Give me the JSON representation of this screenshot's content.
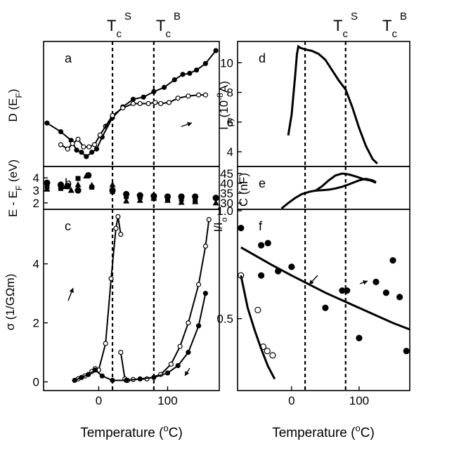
{
  "header": {
    "tc_s": {
      "main": "T",
      "sub": "c",
      "sup": "S"
    },
    "tc_b": {
      "main": "T",
      "sub": "c",
      "sup": "B"
    }
  },
  "x_axis_label": {
    "pre": "Temperature (",
    "sup": "o",
    "post": "C)"
  },
  "chart_data": [
    {
      "id": "a",
      "panel_label": "a",
      "type": "line",
      "ylabel": "D (E_F)",
      "xlim": [
        -80,
        175
      ],
      "ylim": [
        0,
        1
      ],
      "yticks": [],
      "vlines": [
        20,
        80
      ],
      "series": [
        {
          "x": [
            -75,
            -55,
            -40,
            -32,
            -25,
            -18,
            -10,
            -3,
            5,
            20,
            35,
            50,
            65,
            80,
            95,
            110,
            122,
            132,
            142,
            155,
            170
          ],
          "y": [
            0.33,
            0.25,
            0.17,
            0.08,
            0.06,
            0.02,
            0.06,
            0.09,
            0.2,
            0.38,
            0.48,
            0.55,
            0.57,
            0.62,
            0.66,
            0.73,
            0.78,
            0.79,
            0.82,
            0.88,
            1.0
          ],
          "marker": "filled"
        },
        {
          "x": [
            -55,
            -45,
            -38,
            -30,
            -22,
            -14,
            -6,
            2,
            10,
            20,
            35,
            50,
            60,
            72,
            82,
            90,
            102,
            115,
            130,
            145,
            155
          ],
          "y": [
            0.13,
            0.09,
            0.14,
            0.18,
            0.11,
            0.11,
            0.13,
            0.22,
            0.3,
            0.4,
            0.47,
            0.51,
            0.51,
            0.51,
            0.52,
            0.51,
            0.52,
            0.56,
            0.58,
            0.59,
            0.59
          ],
          "marker": "open"
        }
      ]
    },
    {
      "id": "b",
      "panel_label": "b",
      "type": "scatter",
      "ylabel": "E - E_F (eV)",
      "xlim": [
        -80,
        175
      ],
      "ylim": [
        1.6,
        4.4
      ],
      "yticks": [
        2,
        3,
        4
      ],
      "vlines": [
        20,
        80
      ],
      "series": [
        {
          "marker": "circle",
          "x": [
            -75,
            -55,
            -45,
            -30,
            -15,
            20,
            40,
            60,
            80,
            100,
            120,
            140,
            170
          ],
          "y": [
            3.6,
            3.45,
            3.35,
            3.0,
            4.2,
            3.0,
            2.7,
            2.6,
            2.55,
            2.5,
            2.5,
            2.5,
            2.4
          ]
        },
        {
          "marker": "square",
          "x": [
            -75,
            -55,
            -45,
            -30,
            -10,
            20,
            40,
            60,
            80,
            100,
            120,
            140
          ],
          "y": [
            3.3,
            3.15,
            3.3,
            3.95,
            3.25,
            2.9,
            2.5,
            2.45,
            2.35,
            2.3,
            2.3,
            2.2
          ]
        },
        {
          "marker": "triangle",
          "x": [
            -75,
            -55,
            -48,
            -40,
            -30,
            -18,
            -10,
            20,
            40,
            60,
            80,
            100,
            120,
            140,
            170
          ],
          "y": [
            3.1,
            3.45,
            3.3,
            3.0,
            3.45,
            4.15,
            3.4,
            3.45,
            2.15,
            2.2,
            2.4,
            2.2,
            2.05,
            2.1,
            2.0
          ]
        }
      ]
    },
    {
      "id": "c",
      "panel_label": "c",
      "type": "line",
      "ylabel": "σ (1/GΩm)",
      "xlim": [
        -80,
        175
      ],
      "ylim": [
        -0.2,
        5.8
      ],
      "yticks": [
        0,
        2,
        4
      ],
      "xticks": [
        0,
        100
      ],
      "vlines": [
        20,
        80
      ],
      "series": [
        {
          "marker": "open",
          "x": [
            -30,
            -20,
            -10,
            -5,
            0,
            10,
            18,
            25,
            28,
            32
          ],
          "y": [
            0.1,
            0.2,
            0.35,
            0.45,
            0.4,
            1.3,
            3.5,
            5.2,
            5.6,
            5.0
          ]
        },
        {
          "marker": "open",
          "x": [
            32,
            38,
            42,
            50,
            70,
            90,
            105,
            118,
            130,
            145,
            155,
            160
          ],
          "y": [
            1.0,
            0.1,
            0.05,
            0.08,
            0.1,
            0.25,
            0.6,
            1.2,
            2.0,
            3.3,
            4.6,
            5.5
          ]
        },
        {
          "marker": "filled",
          "x": [
            -35,
            -25,
            -15,
            -5,
            5,
            20,
            40,
            60,
            80,
            100,
            115,
            130,
            145,
            155
          ],
          "y": [
            0.05,
            0.15,
            0.25,
            0.4,
            0.2,
            0.05,
            0.05,
            0.1,
            0.15,
            0.3,
            0.55,
            1.0,
            1.9,
            3.0
          ]
        }
      ]
    },
    {
      "id": "d",
      "panel_label": "d",
      "type": "line",
      "ylabel": "I_py(10^-8 A)",
      "xlim": [
        -80,
        175
      ],
      "ylim": [
        3.1,
        11.2
      ],
      "yticks": [
        4,
        6,
        8,
        10
      ],
      "vlines": [
        20,
        80
      ],
      "series": [
        {
          "marker": "none",
          "x": [
            -5,
            0,
            5,
            8,
            10,
            13,
            20,
            30,
            40,
            50,
            60,
            70,
            80,
            90,
            100,
            110,
            120,
            127
          ],
          "y": [
            5.1,
            6.5,
            9.0,
            10.6,
            11.1,
            11.0,
            10.9,
            10.8,
            10.6,
            10.2,
            9.5,
            8.8,
            8.2,
            7.0,
            5.6,
            4.4,
            3.5,
            3.2
          ]
        }
      ]
    },
    {
      "id": "e",
      "panel_label": "e",
      "type": "line",
      "ylabel": "C (nF)",
      "xlim": [
        -80,
        175
      ],
      "ylim": [
        26.8,
        47.5
      ],
      "yticks": [
        30,
        35,
        40,
        45
      ],
      "vlines": [
        20,
        80
      ],
      "series": [
        {
          "marker": "none",
          "x": [
            -15,
            -5,
            5,
            15,
            25,
            35,
            45,
            55,
            65,
            75,
            85,
            100,
            110,
            120,
            125
          ],
          "y": [
            27.2,
            30.0,
            32.5,
            34.5,
            35.6,
            36.3,
            36.5,
            36.8,
            37.4,
            38.3,
            39.5,
            41.5,
            42.3,
            41.5,
            40.6
          ]
        },
        {
          "marker": "none",
          "x": [
            35,
            45,
            55,
            65,
            75,
            85,
            95,
            108,
            115,
            120,
            125
          ],
          "y": [
            36.2,
            38.5,
            41.5,
            44.0,
            45.0,
            44.5,
            43.5,
            42.0,
            41.6,
            41.0,
            40.3
          ]
        }
      ]
    },
    {
      "id": "f",
      "panel_label": "f",
      "type": "scatter",
      "ylabel": "I/I_o",
      "xlim": [
        -80,
        175
      ],
      "ylim": [
        0.17,
        1.0
      ],
      "yticks": [
        0.5,
        1.0
      ],
      "ytick_labels": [
        "0.5",
        "1.0"
      ],
      "xticks": [
        0,
        100
      ],
      "vlines": [
        20,
        80
      ],
      "series": [
        {
          "marker": "filled",
          "x": [
            -75,
            -45,
            -35,
            -45,
            -20,
            0,
            50,
            75,
            82,
            100,
            125,
            140,
            150,
            160,
            170
          ],
          "y": [
            0.92,
            0.84,
            0.85,
            0.7,
            0.72,
            0.74,
            0.55,
            0.63,
            0.63,
            0.41,
            0.67,
            0.62,
            0.77,
            0.6,
            0.35
          ]
        },
        {
          "marker": "open",
          "x": [
            -75,
            -50,
            -42,
            -36,
            -28
          ],
          "y": [
            0.7,
            0.54,
            0.37,
            0.35,
            0.33
          ]
        },
        {
          "marker": "curve",
          "x": [
            -75,
            -30,
            0,
            50,
            100,
            150,
            175
          ],
          "y": [
            0.83,
            0.75,
            0.7,
            0.62,
            0.55,
            0.48,
            0.45
          ]
        },
        {
          "marker": "curve",
          "x": [
            -75,
            -65,
            -55,
            -45,
            -35,
            -25
          ],
          "y": [
            0.7,
            0.55,
            0.45,
            0.36,
            0.28,
            0.22
          ]
        }
      ]
    }
  ]
}
